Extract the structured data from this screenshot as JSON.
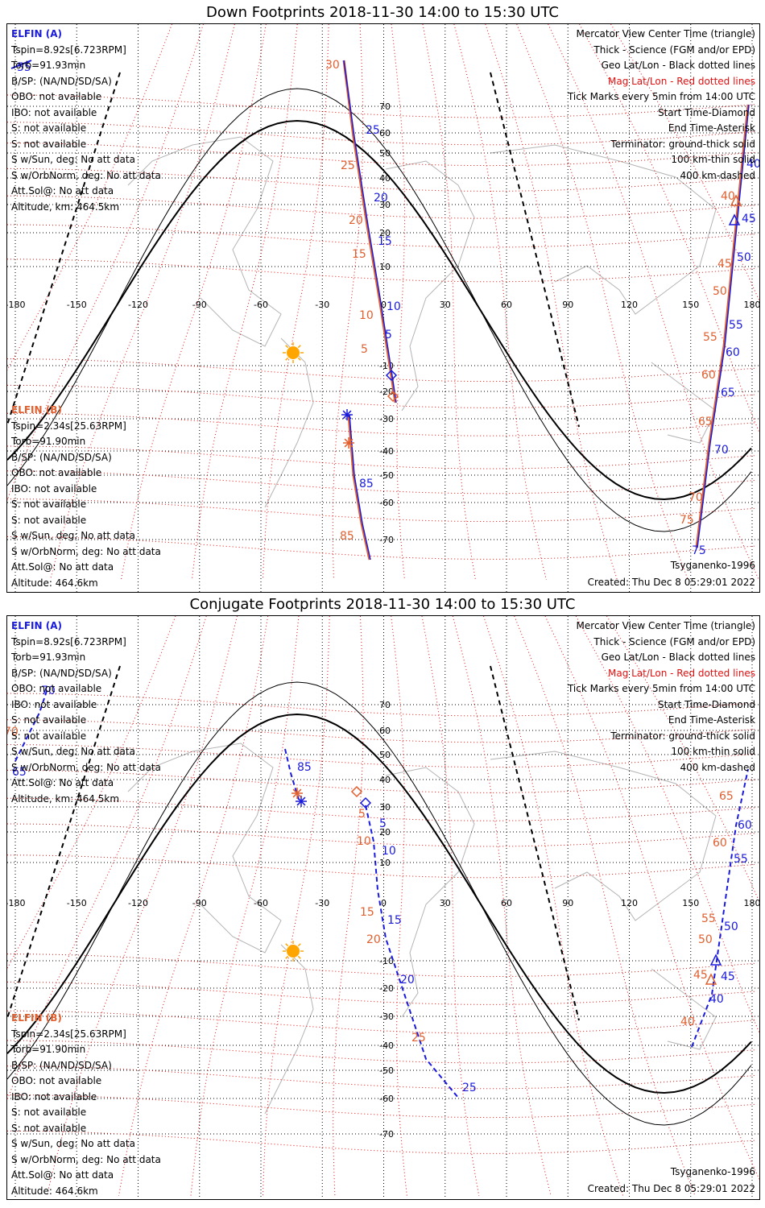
{
  "colors": {
    "elfin_a": "#1a1adc",
    "elfin_b": "#e06030",
    "mag_grid": "#e01010",
    "sun": "#ffa500",
    "coast": "#b4b4b4"
  },
  "lon_tick_labels": [
    "-180",
    "-150",
    "-120",
    "-90",
    "-60",
    "-30",
    "0",
    "30",
    "60",
    "90",
    "120",
    "150",
    "180"
  ],
  "lat_tick_labels": [
    "70",
    "60",
    "50",
    "40",
    "30",
    "20",
    "10",
    "-10",
    "-20",
    "-30",
    "-40",
    "-50",
    "-60",
    "-70"
  ],
  "panels": [
    {
      "title": "Down Footprints 2018-11-30 14:00 to 15:30 UTC",
      "elfin_a": {
        "header": "ELFIN (A)",
        "lines": [
          "Tspin=8.92s[6.723RPM]",
          "Torb=91.93min",
          "B/SP: (NA/ND/SD/SA)",
          "OBO: not available",
          "IBO: not available",
          "S: not available",
          "S: not available",
          "S w/Sun, deg: No att data",
          "S w/OrbNorm, deg: No att data",
          "Att.Sol@: No att data",
          "Altitude, km: 464.5km"
        ]
      },
      "elfin_b": {
        "header": "ELFIN (B)",
        "lines": [
          "Tspin=2.34s[25.63RPM]",
          "Torb=91.90min",
          "B/SP: (NA/ND/SD/SA)",
          "OBO: not available",
          "IBO: not available",
          "S: not available",
          "S: not available",
          "S w/Sun, deg: No att data",
          "S w/OrbNorm, deg: No att data",
          "Att.Sol@: No att data",
          "Altitude: 464.6km"
        ]
      },
      "legend": [
        "Mercator View Center Time (triangle)",
        "Thick - Science (FGM and/or EPD)",
        "Geo Lat/Lon - Black dotted lines",
        "Mag Lat/Lon - Red dotted lines",
        "Tick Marks every 5min from 14:00 UTC",
        "Start Time-Diamond",
        "End Time-Asterisk",
        "Terminator: ground-thick solid",
        "100 km-thin solid",
        "400 km-dashed"
      ],
      "model": "Tsyganenko-1996",
      "created": "Created: Thu Dec  8 05:29:01 2022",
      "blue_tick_labels": [
        "55",
        "25",
        "20",
        "15",
        "10",
        "5",
        "85",
        "40",
        "45",
        "50",
        "55",
        "60",
        "65",
        "70",
        "75"
      ],
      "red_tick_labels": [
        "30",
        "25",
        "20",
        "15",
        "10",
        "5",
        "85",
        "40",
        "45",
        "50",
        "55",
        "60",
        "65",
        "70",
        "75"
      ]
    },
    {
      "title": "Conjugate Footprints 2018-11-30 14:00 to 15:30 UTC",
      "elfin_a": {
        "header": "ELFIN (A)",
        "lines": [
          "Tspin=8.92s[6.723RPM]",
          "Torb=91.93min",
          "B/SP: (NA/ND/SD/SA)",
          "OBO: not available",
          "IBO: not available",
          "S: not available",
          "S: not available",
          "S w/Sun, deg: No att data",
          "S w/OrbNorm, deg: No att data",
          "Att.Sol@: No att data",
          "Altitude, km: 464.5km"
        ]
      },
      "elfin_b": {
        "header": "ELFIN (B)",
        "lines": [
          "Tspin=2.34s[25.63RPM]",
          "Torb=91.90min",
          "B/SP: (NA/ND/SD/SA)",
          "OBO: not available",
          "IBO: not available",
          "S: not available",
          "S: not available",
          "S w/Sun, deg: No att data",
          "S w/OrbNorm, deg: No att data",
          "Att.Sol@: No att data",
          "Altitude: 464.6km"
        ]
      },
      "legend": [
        "Mercator View Center Time (triangle)",
        "Thick - Science (FGM and/or EPD)",
        "Geo Lat/Lon - Black dotted lines",
        "Mag Lat/Lon - Red dotted lines",
        "Tick Marks every 5min from 14:00 UTC",
        "Start Time-Diamond",
        "End Time-Asterisk",
        "Terminator: ground-thick solid",
        "100 km-thin solid",
        "400 km-dashed"
      ],
      "model": "Tsyganenko-1996",
      "created": "Created: Thu Dec  8 05:29:01 2022",
      "blue_tick_labels": [
        "70",
        "65",
        "85",
        "5",
        "10",
        "15",
        "20",
        "25",
        "60",
        "55",
        "50",
        "45",
        "40"
      ],
      "red_tick_labels": [
        "70",
        "5",
        "10",
        "15",
        "20",
        "25",
        "65",
        "60",
        "55",
        "50",
        "45",
        "40"
      ]
    }
  ]
}
